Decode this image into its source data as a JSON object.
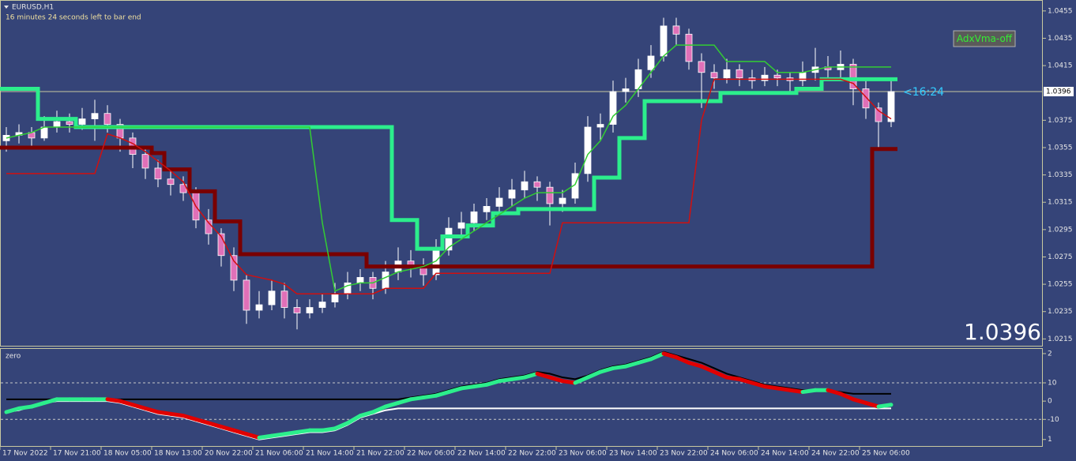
{
  "chart_data": {
    "type": "candlestick",
    "symbol": "EURUSD,H1",
    "timer_text": "16 minutes 24 seconds left to bar end",
    "button": "AdxVma-off",
    "timer_label": "<16:24",
    "last_price": 1.0396,
    "categories": [
      "17 Nov 2022",
      null,
      null,
      null,
      "17 Nov 21:00",
      null,
      null,
      null,
      "18 Nov 05:00",
      null,
      null,
      null,
      "18 Nov 13:00",
      null,
      null,
      null,
      "20 Nov 22:00",
      null,
      null,
      null,
      "21 Nov 06:00",
      null,
      null,
      null,
      "21 Nov 14:00",
      null,
      null,
      null,
      "21 Nov 22:00",
      null,
      null,
      null,
      "22 Nov 06:00",
      null,
      null,
      null,
      "22 Nov 14:00",
      null,
      null,
      null,
      "22 Nov 22:00",
      null,
      null,
      null,
      "23 Nov 06:00",
      null,
      null,
      null,
      "23 Nov 14:00",
      null,
      null,
      null,
      "23 Nov 22:00",
      null,
      null,
      null,
      "24 Nov 06:00",
      null,
      null,
      null,
      "24 Nov 14:00",
      null,
      null,
      null,
      "24 Nov 22:00",
      null,
      null,
      null,
      "25 Nov 06:00",
      null,
      null
    ],
    "open": [
      1.036,
      1.0364,
      1.0366,
      1.0362,
      1.037,
      1.0374,
      1.0372,
      1.0376,
      1.038,
      1.0372,
      1.0362,
      1.035,
      1.034,
      1.0332,
      1.0328,
      1.0322,
      1.0302,
      1.0292,
      1.0276,
      1.0258,
      1.0236,
      1.024,
      1.025,
      1.0238,
      1.0234,
      1.0238,
      1.0242,
      1.0248,
      1.0256,
      1.026,
      1.0252,
      1.0264,
      1.0272,
      1.0268,
      1.0262,
      1.028,
      1.0296,
      1.03,
      1.0308,
      1.0312,
      1.0318,
      1.0324,
      1.033,
      1.0326,
      1.0314,
      1.0318,
      1.0336,
      1.037,
      1.0372,
      1.0396,
      1.0398,
      1.0412,
      1.0422,
      1.0444,
      1.0438,
      1.0418,
      1.041,
      1.0406,
      1.0412,
      1.0406,
      1.0404,
      1.0408,
      1.0406,
      1.0404,
      1.041,
      1.0414,
      1.0412,
      1.0416,
      1.0398,
      1.0384,
      1.0374
    ],
    "high": [
      1.037,
      1.0372,
      1.037,
      1.0378,
      1.0382,
      1.038,
      1.0384,
      1.039,
      1.0386,
      1.0376,
      1.0366,
      1.0356,
      1.0346,
      1.0338,
      1.0334,
      1.0326,
      1.031,
      1.0296,
      1.0282,
      1.0262,
      1.025,
      1.0258,
      1.0256,
      1.0244,
      1.0244,
      1.0248,
      1.0256,
      1.0264,
      1.0266,
      1.0264,
      1.0272,
      1.0282,
      1.028,
      1.0274,
      1.0288,
      1.0304,
      1.0308,
      1.0314,
      1.0318,
      1.0326,
      1.0332,
      1.0338,
      1.0334,
      1.033,
      1.0324,
      1.0344,
      1.0378,
      1.038,
      1.0404,
      1.0406,
      1.042,
      1.043,
      1.045,
      1.045,
      1.0442,
      1.0424,
      1.0416,
      1.042,
      1.0416,
      1.0412,
      1.0414,
      1.0412,
      1.041,
      1.0418,
      1.0428,
      1.0422,
      1.0426,
      1.042,
      1.0404,
      1.0388,
      1.0404
    ],
    "low": [
      1.0352,
      1.0358,
      1.0356,
      1.036,
      1.0366,
      1.0366,
      1.0368,
      1.036,
      1.0366,
      1.0352,
      1.034,
      1.0332,
      1.0326,
      1.032,
      1.0316,
      1.0296,
      1.0284,
      1.0268,
      1.025,
      1.0226,
      1.023,
      1.0236,
      1.023,
      1.0222,
      1.023,
      1.0234,
      1.0238,
      1.0244,
      1.025,
      1.0244,
      1.0248,
      1.0258,
      1.026,
      1.0254,
      1.0258,
      1.0276,
      1.0288,
      1.0294,
      1.0302,
      1.0306,
      1.0312,
      1.0318,
      1.0316,
      1.0298,
      1.0308,
      1.0314,
      1.033,
      1.036,
      1.0366,
      1.0388,
      1.0392,
      1.0406,
      1.0418,
      1.043,
      1.0412,
      1.0384,
      1.0398,
      1.0402,
      1.04,
      1.0398,
      1.04,
      1.04,
      1.0396,
      1.04,
      1.0404,
      1.0406,
      1.0404,
      1.0386,
      1.0376,
      1.0354,
      1.037
    ],
    "close": [
      1.0364,
      1.0366,
      1.0362,
      1.037,
      1.0374,
      1.0372,
      1.0376,
      1.038,
      1.0372,
      1.0362,
      1.035,
      1.034,
      1.0332,
      1.0328,
      1.0322,
      1.0302,
      1.0292,
      1.0276,
      1.0258,
      1.0236,
      1.024,
      1.025,
      1.0238,
      1.0234,
      1.0238,
      1.0242,
      1.0248,
      1.0256,
      1.026,
      1.0252,
      1.0264,
      1.0272,
      1.0268,
      1.0262,
      1.028,
      1.0296,
      1.03,
      1.0308,
      1.0312,
      1.0318,
      1.0324,
      1.033,
      1.0326,
      1.0314,
      1.0318,
      1.0336,
      1.037,
      1.0372,
      1.0396,
      1.0398,
      1.0412,
      1.0422,
      1.0444,
      1.0438,
      1.0418,
      1.041,
      1.0406,
      1.0412,
      1.0406,
      1.0404,
      1.0408,
      1.0406,
      1.0404,
      1.041,
      1.0414,
      1.0412,
      1.0416,
      1.0398,
      1.0384,
      1.0374,
      1.0396
    ],
    "up_color": "#ffffff",
    "down_color": "#e070b8",
    "ylim": [
      1.021,
      1.0463
    ],
    "yticks": [
      1.0455,
      1.0435,
      1.0415,
      1.0375,
      1.0355,
      1.0335,
      1.0315,
      1.0295,
      1.0275,
      1.0255,
      1.0235,
      1.0215
    ],
    "series": [
      {
        "color": "#2cee8c",
        "step": true,
        "values": [
          1.0398,
          1.0398,
          1.0398,
          1.0376,
          1.0376,
          1.0376,
          1.037,
          1.037,
          1.037,
          1.037,
          1.037,
          1.037,
          1.037,
          1.037,
          1.037,
          1.037,
          1.037,
          1.037,
          1.037,
          1.037,
          1.037,
          1.037,
          1.037,
          1.037,
          1.037,
          1.037,
          1.037,
          1.037,
          1.037,
          1.037,
          1.037,
          1.0302,
          1.0302,
          1.0281,
          1.0281,
          1.029,
          1.029,
          1.0298,
          1.0298,
          1.0307,
          1.0307,
          1.031,
          1.031,
          1.031,
          1.031,
          1.031,
          1.031,
          1.0333,
          1.0333,
          1.0362,
          1.0362,
          1.0389,
          1.0389,
          1.0389,
          1.0389,
          1.0389,
          1.0389,
          1.0395,
          1.0395,
          1.0395,
          1.0395,
          1.0395,
          1.0395,
          1.0398,
          1.0398,
          1.0405,
          1.0405,
          1.0405,
          1.0405,
          1.0405,
          1.0405
        ]
      },
      {
        "color": "#7a0000",
        "step": true,
        "values": [
          1.0355,
          1.0355,
          1.0355,
          1.0355,
          1.0355,
          1.0355,
          1.0355,
          1.0355,
          1.0355,
          1.0355,
          1.0355,
          1.0355,
          1.0351,
          1.0339,
          1.0339,
          1.0323,
          1.0323,
          1.0301,
          1.0301,
          1.0277,
          1.0277,
          1.0277,
          1.0277,
          1.0277,
          1.0277,
          1.0277,
          1.0277,
          1.0277,
          1.0277,
          1.0268,
          1.0268,
          1.0268,
          1.0268,
          1.0268,
          1.0268,
          1.0268,
          1.0268,
          1.0268,
          1.0268,
          1.0268,
          1.0268,
          1.0268,
          1.0268,
          1.0268,
          1.0268,
          1.0268,
          1.0268,
          1.0268,
          1.0268,
          1.0268,
          1.0268,
          1.0268,
          1.0268,
          1.0268,
          1.0268,
          1.0268,
          1.0268,
          1.0268,
          1.0268,
          1.0268,
          1.0268,
          1.0268,
          1.0268,
          1.0268,
          1.0268,
          1.0268,
          1.0268,
          1.0268,
          1.0268,
          1.0354,
          1.0354
        ]
      },
      {
        "color": "#33cc33",
        "step": false,
        "values": [
          1.0362,
          1.0364,
          1.0366,
          1.037,
          1.037,
          1.037,
          1.037,
          1.037,
          1.037,
          1.037,
          1.037,
          1.037,
          1.037,
          1.037,
          1.037,
          1.037,
          1.037,
          1.037,
          1.037,
          1.037,
          1.037,
          1.037,
          1.037,
          1.037,
          1.037,
          1.03,
          1.025,
          1.0254,
          1.0256,
          1.0256,
          1.026,
          1.0264,
          1.0266,
          1.0268,
          1.0272,
          1.0282,
          1.0288,
          1.0294,
          1.03,
          1.0306,
          1.0312,
          1.0318,
          1.0322,
          1.0322,
          1.0322,
          1.0328,
          1.035,
          1.036,
          1.0378,
          1.0386,
          1.0398,
          1.041,
          1.0422,
          1.043,
          1.043,
          1.043,
          1.043,
          1.0418,
          1.0418,
          1.0418,
          1.0418,
          1.041,
          1.041,
          1.041,
          1.0412,
          1.0414,
          1.0414,
          1.0414,
          1.0414,
          1.0414,
          1.0414
        ]
      },
      {
        "color": "#d01010",
        "step": false,
        "values": [
          1.0336,
          1.0336,
          1.0336,
          1.0336,
          1.0336,
          1.0336,
          1.0336,
          1.0336,
          1.0365,
          1.0362,
          1.0358,
          1.0352,
          1.0345,
          1.0338,
          1.033,
          1.0312,
          1.03,
          1.029,
          1.0272,
          1.0262,
          1.026,
          1.0258,
          1.0255,
          1.0248,
          1.0248,
          1.0248,
          1.0248,
          1.0248,
          1.0248,
          1.0248,
          1.0252,
          1.0252,
          1.0252,
          1.0252,
          1.0263,
          1.0263,
          1.0263,
          1.0263,
          1.0263,
          1.0263,
          1.0263,
          1.0263,
          1.0263,
          1.0263,
          1.03,
          1.03,
          1.03,
          1.03,
          1.03,
          1.03,
          1.03,
          1.03,
          1.03,
          1.03,
          1.03,
          1.0375,
          1.0405,
          1.0405,
          1.0405,
          1.0405,
          1.0405,
          1.0405,
          1.0405,
          1.0405,
          1.0405,
          1.0405,
          1.0405,
          1.0402,
          1.0392,
          1.0382,
          1.0376
        ]
      }
    ],
    "subchart": {
      "type": "line",
      "label": "zero",
      "ylim": [
        -25,
        29
      ],
      "yticks": [
        {
          "value": 26,
          "label": "2"
        },
        10,
        0,
        -10,
        {
          "value": -21,
          "label": "1"
        }
      ],
      "levels": [
        10,
        -10
      ],
      "rising_color": "#2cee8c",
      "falling_color": "#e00000",
      "values": [
        -6,
        -4,
        -3,
        -1,
        1,
        1,
        1,
        1,
        1,
        0,
        -2,
        -4,
        -6,
        -7,
        -8,
        -10,
        -12,
        -14,
        -16,
        -18,
        -20,
        -19,
        -18,
        -17,
        -16,
        -16,
        -15,
        -12,
        -8,
        -6,
        -3,
        -1,
        1,
        2,
        3,
        5,
        7,
        8,
        9,
        11,
        12,
        13,
        15,
        13,
        11,
        10,
        13,
        16,
        18,
        19,
        21,
        23,
        26,
        24,
        21,
        19,
        16,
        13,
        12,
        10,
        8,
        7,
        6,
        5,
        6,
        6,
        4,
        1,
        -1,
        -3,
        -2
      ],
      "series": [
        {
          "color": "#000000",
          "values": [
            1,
            1,
            1,
            1,
            1,
            1,
            1,
            1,
            1,
            1,
            1,
            1,
            1,
            1,
            1,
            1,
            1,
            1,
            1,
            1,
            1,
            1,
            1,
            1,
            1,
            1,
            1,
            1,
            1,
            1,
            1,
            1,
            2,
            3,
            4,
            6,
            8,
            9,
            10,
            12,
            13,
            14,
            16,
            15,
            13,
            12,
            14,
            17,
            19,
            20,
            22,
            24,
            27,
            25,
            23,
            21,
            18,
            15,
            13,
            11,
            9,
            8,
            7,
            6,
            6,
            6,
            5,
            4,
            4,
            4,
            4
          ]
        },
        {
          "color": "#ffffff",
          "values": [
            -6,
            -5,
            -3,
            -1,
            0,
            0,
            0,
            0,
            0,
            -1,
            -3,
            -5,
            -7,
            -8,
            -9,
            -11,
            -13,
            -15,
            -17,
            -19,
            -21,
            -20,
            -19,
            -18,
            -17,
            -17,
            -16,
            -13,
            -9,
            -7,
            -5,
            -4,
            -4,
            -4,
            -4,
            -4,
            -4,
            -4,
            -4,
            -4,
            -4,
            -4,
            -4,
            -4,
            -4,
            -4,
            -4,
            -4,
            -4,
            -4,
            -4,
            -4,
            -4,
            -4,
            -4,
            -4,
            -4,
            -4,
            -4,
            -4,
            -4,
            -4,
            -4,
            -4,
            -4,
            -4,
            -4,
            -4,
            -4,
            -4,
            -4
          ]
        }
      ]
    }
  }
}
